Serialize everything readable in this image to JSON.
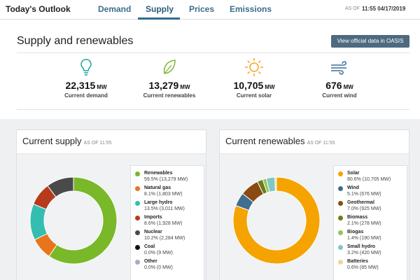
{
  "nav": {
    "brand": "Today's Outlook",
    "tabs": [
      {
        "label": "Demand"
      },
      {
        "label": "Supply"
      },
      {
        "label": "Prices"
      },
      {
        "label": "Emissions"
      }
    ],
    "active_tab": "Supply",
    "asof_label": "AS OF",
    "asof_value": "11:55 04/17/2019"
  },
  "summary": {
    "title": "Supply and renewables",
    "oasis_button": "View official data in OASIS",
    "kpis": [
      {
        "value": "22,315",
        "unit": "MW",
        "label": "Current demand",
        "icon": "lightbulb-icon",
        "color": "#1aa7a0"
      },
      {
        "value": "13,279",
        "unit": "MW",
        "label": "Current renewables",
        "icon": "leaf-icon",
        "color": "#7cb82f"
      },
      {
        "value": "10,705",
        "unit": "MW",
        "label": "Current solar",
        "icon": "sun-icon",
        "color": "#f5a623"
      },
      {
        "value": "676",
        "unit": "MW",
        "label": "Current wind",
        "icon": "wind-icon",
        "color": "#3d6f94"
      }
    ]
  },
  "supply_card": {
    "title": "Current supply",
    "asof": "AS OF  11:55",
    "items": [
      {
        "name": "Renewables",
        "detail": "59.5% (13,279 MW)",
        "pct": 59.5,
        "color": "#79b829"
      },
      {
        "name": "Natural gas",
        "detail": "8.1% (1,803 MW)",
        "pct": 8.1,
        "color": "#e8741c"
      },
      {
        "name": "Large hydro",
        "detail": "13.5% (3,011 MW)",
        "pct": 13.5,
        "color": "#35bdb1"
      },
      {
        "name": "Imports",
        "detail": "8.6% (1,928 MW)",
        "pct": 8.6,
        "color": "#b83a1c"
      },
      {
        "name": "Nuclear",
        "detail": "10.2% (2,284 MW)",
        "pct": 10.2,
        "color": "#4a4a4a"
      },
      {
        "name": "Coal",
        "detail": "0.0% (9 MW)",
        "pct": 0.0,
        "color": "#111111"
      },
      {
        "name": "Other",
        "detail": "0.0% (0 MW)",
        "pct": 0.0,
        "color": "#a9a9c8"
      }
    ]
  },
  "renewables_card": {
    "title": "Current renewables",
    "asof": "AS OF  11:55",
    "items": [
      {
        "name": "Solar",
        "detail": "80.6% (10,705 MW)",
        "pct": 80.6,
        "color": "#f5a300"
      },
      {
        "name": "Wind",
        "detail": "5.1% (676 MW)",
        "pct": 5.1,
        "color": "#3e6f8f"
      },
      {
        "name": "Geothermal",
        "detail": "7.0% (925 MW)",
        "pct": 7.0,
        "color": "#8a4a12"
      },
      {
        "name": "Biomass",
        "detail": "2.1% (278 MW)",
        "pct": 2.1,
        "color": "#6b7d1a"
      },
      {
        "name": "Biogas",
        "detail": "1.4% (190 MW)",
        "pct": 1.4,
        "color": "#9ac25a"
      },
      {
        "name": "Small hydro",
        "detail": "3.2% (420 MW)",
        "pct": 3.2,
        "color": "#7ec9c2"
      },
      {
        "name": "Batteries",
        "detail": "0.6% (85 MW)",
        "pct": 0.6,
        "color": "#f4d39a"
      }
    ]
  }
}
